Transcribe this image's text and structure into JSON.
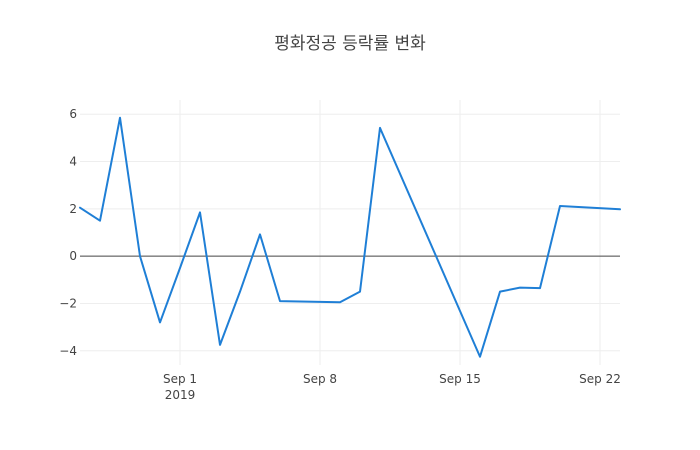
{
  "chart_data": {
    "type": "line",
    "title": "평화정공 등락률 변화",
    "xlabel": "",
    "ylabel": "",
    "x": [
      "2019-08-27",
      "2019-08-28",
      "2019-08-29",
      "2019-08-30",
      "2019-08-31",
      "2019-09-01",
      "2019-09-02",
      "2019-09-03",
      "2019-09-04",
      "2019-09-05",
      "2019-09-06",
      "2019-09-09",
      "2019-09-10",
      "2019-09-11",
      "2019-09-16",
      "2019-09-17",
      "2019-09-18",
      "2019-09-19",
      "2019-09-20",
      "2019-09-23"
    ],
    "series": [
      {
        "name": "",
        "color": "#1f7fd6",
        "values": [
          2.05,
          1.5,
          5.85,
          0.0,
          -2.8,
          -0.5,
          1.85,
          -3.75,
          -1.5,
          0.92,
          -1.9,
          -1.95,
          -1.5,
          5.42,
          -4.25,
          -1.5,
          -1.33,
          -1.35,
          2.12,
          1.98
        ]
      }
    ],
    "xlim": [
      "2019-08-27",
      "2019-09-23"
    ],
    "ylim": [
      -4.6,
      6.6
    ],
    "x_ticks": [
      {
        "date": "2019-09-01",
        "label": "Sep 1",
        "sublabel": "2019"
      },
      {
        "date": "2019-09-08",
        "label": "Sep 8",
        "sublabel": ""
      },
      {
        "date": "2019-09-15",
        "label": "Sep 15",
        "sublabel": ""
      },
      {
        "date": "2019-09-22",
        "label": "Sep 22",
        "sublabel": ""
      }
    ],
    "y_ticks": [
      -4,
      -2,
      0,
      2,
      4,
      6
    ],
    "y_tick_labels": [
      "−4",
      "−2",
      "0",
      "2",
      "4",
      "6"
    ],
    "grid": true,
    "zero_line": true
  }
}
